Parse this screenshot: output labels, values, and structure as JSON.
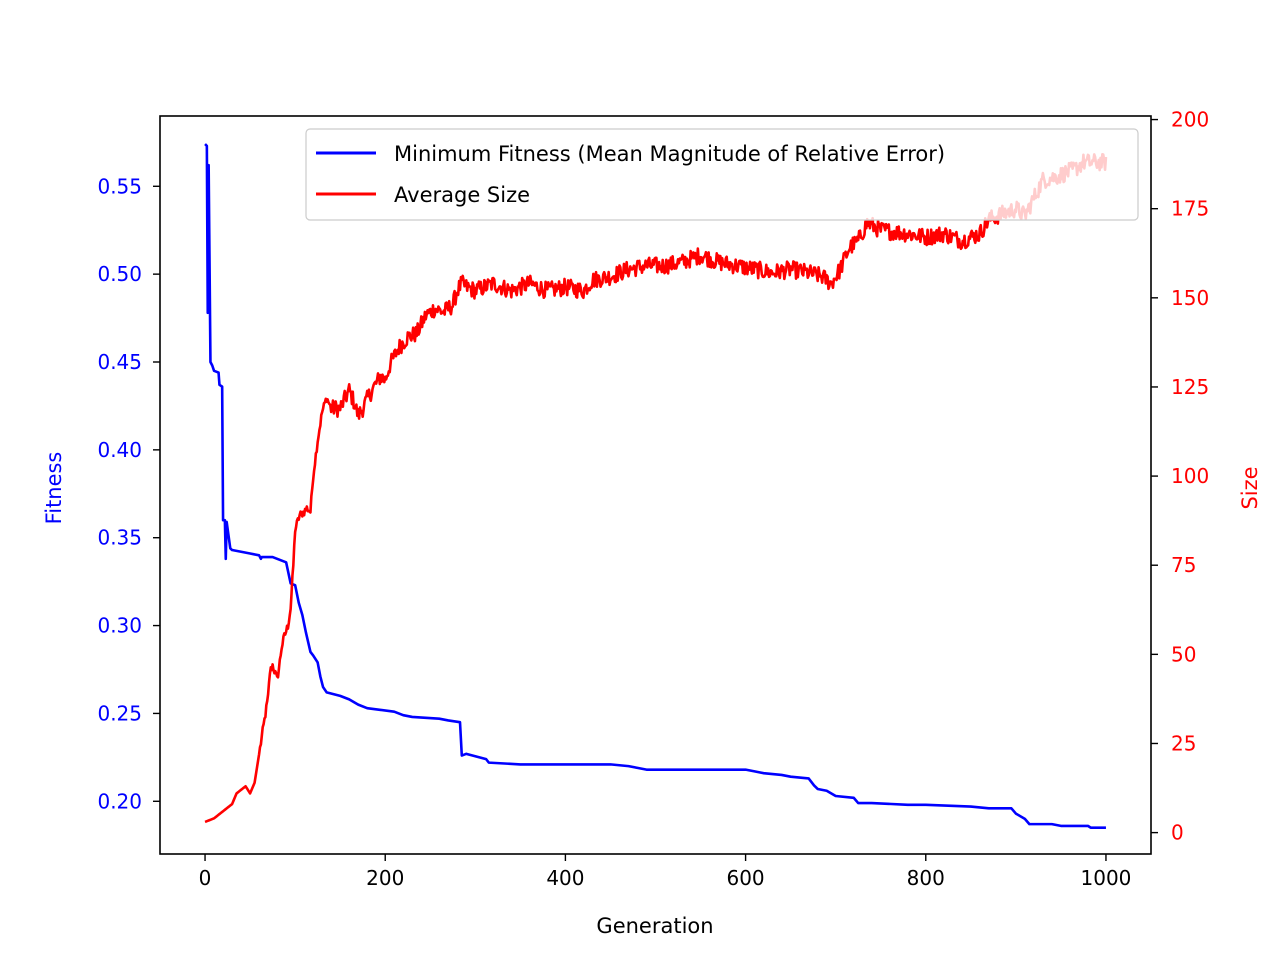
{
  "chart_data": {
    "type": "line",
    "xlabel": "Generation",
    "ylabel_left": "Fitness",
    "ylabel_right": "Size",
    "xlim": [
      -50,
      1050
    ],
    "ylim_left": [
      0.17,
      0.59
    ],
    "ylim_right": [
      -6,
      201
    ],
    "x_ticks": [
      0,
      200,
      400,
      600,
      800,
      1000
    ],
    "y_ticks_left": [
      0.2,
      0.25,
      0.3,
      0.35,
      0.4,
      0.45,
      0.5,
      0.55
    ],
    "y_ticks_right": [
      0,
      25,
      50,
      75,
      100,
      125,
      150,
      175,
      200
    ],
    "grid": false,
    "legend_position": "top-right",
    "colors": {
      "fitness": "#0000ff",
      "size": "#ff0000",
      "axes": "#000000"
    },
    "series": [
      {
        "name": "Minimum Fitness (Mean Magnitude of Relative Error)",
        "axis": "left",
        "color": "#0000ff",
        "step": true,
        "points": [
          [
            0,
            0.574
          ],
          [
            2,
            0.573
          ],
          [
            3,
            0.478
          ],
          [
            4,
            0.562
          ],
          [
            6,
            0.45
          ],
          [
            8,
            0.448
          ],
          [
            10,
            0.445
          ],
          [
            15,
            0.444
          ],
          [
            16,
            0.437
          ],
          [
            19,
            0.436
          ],
          [
            20,
            0.36
          ],
          [
            22,
            0.36
          ],
          [
            23,
            0.338
          ],
          [
            24,
            0.359
          ],
          [
            28,
            0.344
          ],
          [
            30,
            0.343
          ],
          [
            50,
            0.341
          ],
          [
            60,
            0.34
          ],
          [
            62,
            0.338
          ],
          [
            63,
            0.339
          ],
          [
            75,
            0.339
          ],
          [
            80,
            0.338
          ],
          [
            90,
            0.336
          ],
          [
            95,
            0.324
          ],
          [
            100,
            0.323
          ],
          [
            104,
            0.313
          ],
          [
            108,
            0.306
          ],
          [
            112,
            0.296
          ],
          [
            117,
            0.285
          ],
          [
            120,
            0.283
          ],
          [
            125,
            0.279
          ],
          [
            128,
            0.271
          ],
          [
            131,
            0.265
          ],
          [
            135,
            0.262
          ],
          [
            150,
            0.26
          ],
          [
            160,
            0.258
          ],
          [
            170,
            0.255
          ],
          [
            180,
            0.253
          ],
          [
            195,
            0.252
          ],
          [
            210,
            0.251
          ],
          [
            220,
            0.249
          ],
          [
            230,
            0.248
          ],
          [
            260,
            0.247
          ],
          [
            270,
            0.246
          ],
          [
            283,
            0.245
          ],
          [
            285,
            0.226
          ],
          [
            290,
            0.227
          ],
          [
            312,
            0.224
          ],
          [
            315,
            0.222
          ],
          [
            350,
            0.221
          ],
          [
            400,
            0.221
          ],
          [
            450,
            0.221
          ],
          [
            470,
            0.22
          ],
          [
            480,
            0.219
          ],
          [
            490,
            0.218
          ],
          [
            560,
            0.218
          ],
          [
            600,
            0.218
          ],
          [
            610,
            0.217
          ],
          [
            620,
            0.216
          ],
          [
            640,
            0.215
          ],
          [
            650,
            0.214
          ],
          [
            670,
            0.213
          ],
          [
            676,
            0.209
          ],
          [
            680,
            0.207
          ],
          [
            690,
            0.206
          ],
          [
            700,
            0.203
          ],
          [
            720,
            0.202
          ],
          [
            725,
            0.199
          ],
          [
            740,
            0.199
          ],
          [
            780,
            0.198
          ],
          [
            800,
            0.198
          ],
          [
            850,
            0.197
          ],
          [
            870,
            0.196
          ],
          [
            895,
            0.196
          ],
          [
            900,
            0.193
          ],
          [
            910,
            0.19
          ],
          [
            915,
            0.187
          ],
          [
            940,
            0.187
          ],
          [
            950,
            0.186
          ],
          [
            980,
            0.186
          ],
          [
            983,
            0.185
          ],
          [
            1000,
            0.185
          ]
        ]
      },
      {
        "name": "Average Size",
        "axis": "right",
        "color": "#ff0000",
        "step": false,
        "noise": true,
        "points": [
          [
            0,
            3
          ],
          [
            10,
            4
          ],
          [
            15,
            5
          ],
          [
            20,
            6
          ],
          [
            30,
            8
          ],
          [
            35,
            11
          ],
          [
            40,
            12
          ],
          [
            45,
            13
          ],
          [
            50,
            11
          ],
          [
            55,
            14
          ],
          [
            60,
            22
          ],
          [
            65,
            30
          ],
          [
            70,
            38
          ],
          [
            72,
            45
          ],
          [
            75,
            47
          ],
          [
            80,
            43
          ],
          [
            82,
            46
          ],
          [
            85,
            52
          ],
          [
            88,
            55
          ],
          [
            92,
            58
          ],
          [
            95,
            63
          ],
          [
            98,
            75
          ],
          [
            100,
            85
          ],
          [
            105,
            89
          ],
          [
            110,
            90
          ],
          [
            113,
            91
          ],
          [
            117,
            90
          ],
          [
            120,
            100
          ],
          [
            125,
            110
          ],
          [
            130,
            118
          ],
          [
            135,
            122
          ],
          [
            140,
            119
          ],
          [
            150,
            119
          ],
          [
            160,
            124
          ],
          [
            165,
            121
          ],
          [
            170,
            117
          ],
          [
            175,
            119
          ],
          [
            185,
            124
          ],
          [
            195,
            128
          ],
          [
            200,
            127
          ],
          [
            205,
            131
          ],
          [
            215,
            136
          ],
          [
            225,
            139
          ],
          [
            235,
            140
          ],
          [
            245,
            145
          ],
          [
            255,
            147
          ],
          [
            265,
            146
          ],
          [
            275,
            148
          ],
          [
            280,
            152
          ],
          [
            285,
            154
          ],
          [
            290,
            153
          ],
          [
            300,
            152
          ],
          [
            320,
            154
          ],
          [
            340,
            152
          ],
          [
            360,
            154
          ],
          [
            380,
            152
          ],
          [
            400,
            153
          ],
          [
            420,
            152
          ],
          [
            430,
            155
          ],
          [
            450,
            156
          ],
          [
            470,
            158
          ],
          [
            490,
            159
          ],
          [
            510,
            159
          ],
          [
            530,
            160
          ],
          [
            550,
            162
          ],
          [
            570,
            160
          ],
          [
            590,
            159
          ],
          [
            610,
            158
          ],
          [
            630,
            157
          ],
          [
            650,
            158
          ],
          [
            670,
            157
          ],
          [
            685,
            156
          ],
          [
            695,
            154
          ],
          [
            705,
            158
          ],
          [
            715,
            164
          ],
          [
            725,
            166
          ],
          [
            735,
            171
          ],
          [
            750,
            169
          ],
          [
            780,
            168
          ],
          [
            800,
            167
          ],
          [
            820,
            168
          ],
          [
            840,
            166
          ],
          [
            850,
            167
          ],
          [
            860,
            168
          ],
          [
            870,
            172
          ],
          [
            890,
            174
          ],
          [
            900,
            175
          ],
          [
            910,
            173
          ],
          [
            920,
            178
          ],
          [
            930,
            183
          ],
          [
            945,
            184
          ],
          [
            955,
            185
          ],
          [
            965,
            186
          ],
          [
            975,
            188
          ],
          [
            985,
            188
          ],
          [
            1000,
            188
          ]
        ]
      }
    ]
  }
}
